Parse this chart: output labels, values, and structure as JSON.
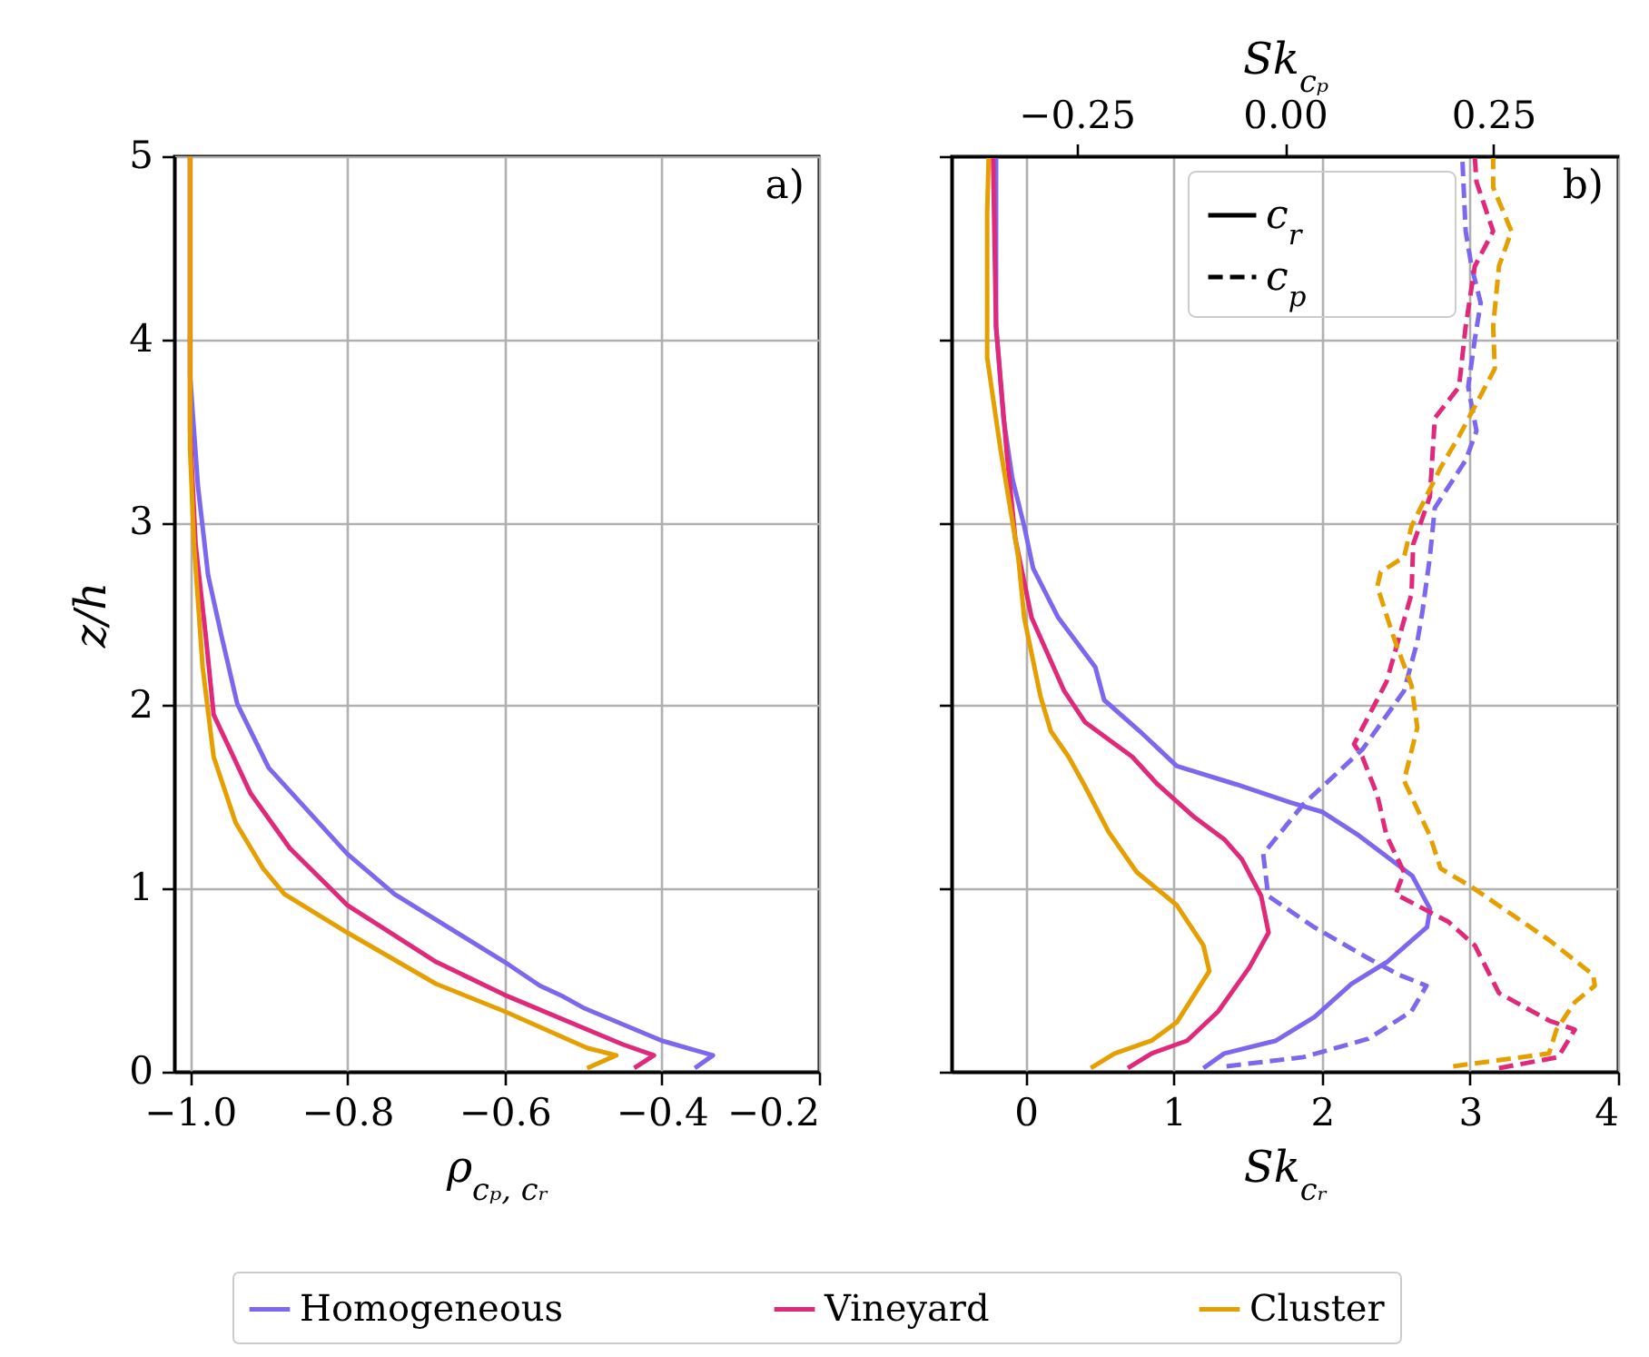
{
  "chart_data": [
    {
      "type": "line",
      "xlabel": "ρ$_{cₚ, cᵣ}$",
      "ylabel": "z/h",
      "xlim": [
        -1.02,
        -0.2
      ],
      "xticks": [
        {
          "value": -1,
          "label": "−1.0"
        },
        {
          "value": -0.8,
          "label": "−0.8"
        },
        {
          "value": -0.6,
          "label": "−0.6"
        },
        {
          "value": -0.4,
          "label": "−0.4"
        },
        {
          "value": -0.2,
          "label": "−0.2"
        }
      ],
      "ylim": [
        0,
        5
      ],
      "yticks": [
        0,
        1,
        2,
        3,
        4,
        5
      ],
      "grid": true,
      "legend": "bottom",
      "title": "a)",
      "series": [
        {
          "name": "Homogeneous",
          "color": "#7b68ee",
          "x": [
            -0.358,
            -0.335,
            -0.4,
            -0.5,
            -0.525,
            -0.555,
            -0.6,
            -0.74,
            -0.8,
            -0.9,
            -0.94,
            -0.96,
            -0.977,
            -0.99,
            -1.0,
            -1.0
          ],
          "values": [
            0.02,
            0.09,
            0.17,
            0.35,
            0.41,
            0.47,
            0.6,
            0.97,
            1.19,
            1.66,
            2.01,
            2.38,
            2.71,
            3.2,
            3.8,
            5
          ]
        },
        {
          "name": "Vineyard",
          "color": "#e0297a",
          "x": [
            -0.435,
            -0.41,
            -0.45,
            -0.6,
            -0.687,
            -0.8,
            -0.873,
            -0.923,
            -0.97,
            -0.98,
            -0.993,
            -1.0,
            -1.0
          ],
          "values": [
            0.02,
            0.09,
            0.15,
            0.42,
            0.6,
            0.91,
            1.22,
            1.52,
            1.95,
            2.38,
            2.88,
            3.5,
            5
          ]
        },
        {
          "name": "Cluster",
          "color": "#e69f00",
          "x": [
            -0.495,
            -0.458,
            -0.495,
            -0.6,
            -0.687,
            -0.8,
            -0.88,
            -0.907,
            -0.942,
            -0.97,
            -0.984,
            -0.995,
            -1.0,
            -1.0
          ],
          "values": [
            0.02,
            0.09,
            0.13,
            0.33,
            0.48,
            0.76,
            0.97,
            1.11,
            1.36,
            1.72,
            2.21,
            2.88,
            3.4,
            5
          ]
        }
      ]
    },
    {
      "type": "line",
      "xlabel": "Sk$_{cᵣ}$",
      "x2label": "Sk$_{cₚ}$",
      "xlim": [
        -0.5,
        4
      ],
      "xticks": [
        0,
        1,
        2,
        3,
        4
      ],
      "x2lim": [
        -0.4,
        0.4
      ],
      "x2ticks": [
        {
          "value": -0.25,
          "label": "−0.25"
        },
        {
          "value": 0,
          "label": "0.00"
        },
        {
          "value": 0.25,
          "label": "0.25"
        }
      ],
      "ylim": [
        0,
        5
      ],
      "yticks": [
        0,
        1,
        2,
        3,
        4,
        5
      ],
      "tick_labels": "x",
      "grid": true,
      "legend": "top",
      "title": "b)",
      "annotations": [
        "c$_{r}$",
        "c$_{p}$"
      ],
      "series": [
        {
          "color": "#7b68ee",
          "line_style": "solid",
          "x": [
            1.2,
            1.34,
            1.69,
            1.95,
            2.2,
            2.44,
            2.71,
            2.73,
            2.61,
            2.25,
            2.0,
            1.79,
            1.42,
            1.02,
            0.77,
            0.53,
            0.47,
            0.22,
            0.05,
            -0.01,
            -0.09,
            -0.15,
            -0.2,
            -0.2
          ],
          "values": [
            0.02,
            0.1,
            0.17,
            0.3,
            0.48,
            0.6,
            0.79,
            0.89,
            1.07,
            1.29,
            1.42,
            1.47,
            1.57,
            1.67,
            1.86,
            2.03,
            2.21,
            2.48,
            2.75,
            2.98,
            3.24,
            3.57,
            4.07,
            4.99
          ]
        },
        {
          "color": "#e0297a",
          "line_style": "solid",
          "x": [
            0.69,
            0.85,
            1.09,
            1.3,
            1.51,
            1.64,
            1.59,
            1.46,
            1.34,
            1.14,
            0.89,
            0.72,
            0.4,
            0.26,
            0.04,
            -0.07,
            -0.13,
            -0.2,
            -0.22
          ],
          "values": [
            0.02,
            0.1,
            0.17,
            0.33,
            0.57,
            0.76,
            0.96,
            1.16,
            1.27,
            1.39,
            1.57,
            1.72,
            1.91,
            2.08,
            2.48,
            2.91,
            3.4,
            4.07,
            4.99
          ]
        },
        {
          "color": "#e69f00",
          "line_style": "solid",
          "x": [
            0.44,
            0.6,
            0.85,
            1.02,
            1.24,
            1.2,
            1.02,
            0.75,
            0.56,
            0.4,
            0.29,
            0.17,
            0.1,
            -0.01,
            -0.05,
            -0.17,
            -0.26,
            -0.26,
            -0.25
          ],
          "values": [
            0.02,
            0.1,
            0.17,
            0.27,
            0.55,
            0.69,
            0.91,
            1.09,
            1.31,
            1.56,
            1.72,
            1.86,
            2.05,
            2.48,
            2.81,
            3.4,
            3.9,
            4.69,
            4.99
          ]
        },
        {
          "color": "#7b68ee",
          "line_style": "dashed",
          "axis": "x2",
          "x": [
            -0.07,
            0.022,
            0.1,
            0.152,
            0.17,
            0.137,
            0.1,
            0.035,
            -0.02,
            -0.026,
            0.022,
            0.093,
            0.143,
            0.159,
            0.165,
            0.174,
            0.18,
            0.217,
            0.23,
            0.22,
            0.228,
            0.235,
            0.224,
            0.217,
            0.213
          ],
          "values": [
            0.03,
            0.08,
            0.18,
            0.33,
            0.47,
            0.53,
            0.62,
            0.79,
            0.96,
            1.19,
            1.46,
            1.76,
            2.08,
            2.35,
            2.51,
            2.81,
            3.08,
            3.34,
            3.5,
            3.74,
            4.0,
            4.2,
            4.4,
            4.59,
            4.99
          ]
        },
        {
          "color": "#e0297a",
          "line_style": "dashed",
          "axis": "x2",
          "x": [
            0.257,
            0.328,
            0.348,
            0.317,
            0.257,
            0.228,
            0.196,
            0.133,
            0.143,
            0.122,
            0.111,
            0.093,
            0.083,
            0.122,
            0.152,
            0.154,
            0.174,
            0.18,
            0.209,
            0.217,
            0.228,
            0.25,
            0.23,
            0.228
          ],
          "values": [
            0.02,
            0.08,
            0.23,
            0.28,
            0.43,
            0.69,
            0.82,
            0.97,
            1.09,
            1.29,
            1.51,
            1.72,
            1.79,
            2.13,
            2.61,
            2.88,
            3.14,
            3.57,
            3.74,
            4.07,
            4.4,
            4.59,
            4.86,
            4.99
          ]
        },
        {
          "color": "#e69f00",
          "line_style": "dashed",
          "axis": "x2",
          "x": [
            0.202,
            0.317,
            0.326,
            0.348,
            0.372,
            0.37,
            0.317,
            0.224,
            0.187,
            0.174,
            0.143,
            0.159,
            0.152,
            0.13,
            0.111,
            0.115,
            0.143,
            0.152,
            0.187,
            0.209,
            0.252,
            0.25,
            0.257,
            0.272,
            0.25,
            0.25
          ],
          "values": [
            0.03,
            0.1,
            0.23,
            0.38,
            0.47,
            0.53,
            0.72,
            1.01,
            1.11,
            1.29,
            1.59,
            1.88,
            2.11,
            2.38,
            2.65,
            2.73,
            2.81,
            2.98,
            3.3,
            3.47,
            3.84,
            4.07,
            4.4,
            4.59,
            4.83,
            4.99
          ]
        }
      ]
    }
  ]
}
